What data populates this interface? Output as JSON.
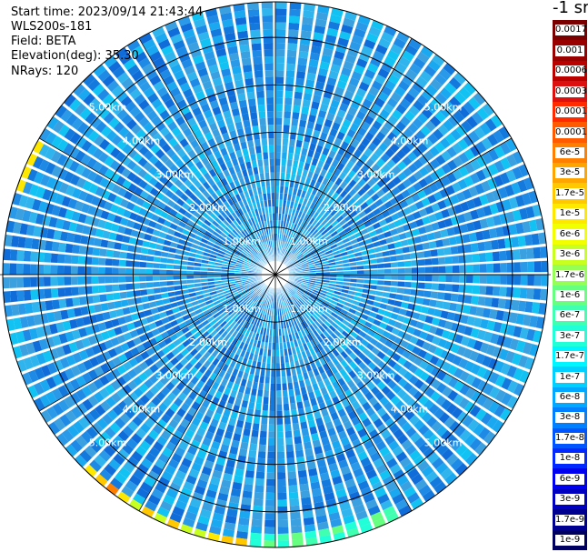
{
  "header": {
    "start_time": "Start time: 2023/09/14 21:43:44",
    "instrument": "WLS200s-181",
    "field": "Field: BETA",
    "elevation": "Elevation(deg): 35.30",
    "nrays": "NRays: 120"
  },
  "colorbar": {
    "unit_label": "-1 sr",
    "entries": [
      {
        "label": "0.0017",
        "color": "#7a0000"
      },
      {
        "label": "0.001",
        "color": "#990000"
      },
      {
        "label": "0.0006",
        "color": "#bb0000"
      },
      {
        "label": "0.0003",
        "color": "#dd1010"
      },
      {
        "label": "0.00017",
        "color": "#ff2a00"
      },
      {
        "label": "0.0001",
        "color": "#ff5a00"
      },
      {
        "label": "6e-5",
        "color": "#ff8000"
      },
      {
        "label": "3e-5",
        "color": "#ffa500"
      },
      {
        "label": "1.7e-5",
        "color": "#ffc800"
      },
      {
        "label": "1e-5",
        "color": "#ffe800"
      },
      {
        "label": "6e-6",
        "color": "#f2ff00"
      },
      {
        "label": "3e-6",
        "color": "#c8ff20"
      },
      {
        "label": "1.7e-6",
        "color": "#96ff55"
      },
      {
        "label": "1e-6",
        "color": "#66ff80"
      },
      {
        "label": "6e-7",
        "color": "#40ffb0"
      },
      {
        "label": "3e-7",
        "color": "#20ffd8"
      },
      {
        "label": "1.7e-7",
        "color": "#00f5ff"
      },
      {
        "label": "1e-7",
        "color": "#00d0ff"
      },
      {
        "label": "6e-8",
        "color": "#00a8ff"
      },
      {
        "label": "3e-8",
        "color": "#0080ff"
      },
      {
        "label": "1.7e-8",
        "color": "#0055ff"
      },
      {
        "label": "1e-8",
        "color": "#0028ff"
      },
      {
        "label": "6e-9",
        "color": "#0000f0"
      },
      {
        "label": "3e-9",
        "color": "#0000c0"
      },
      {
        "label": "1.7e-9",
        "color": "#000090"
      },
      {
        "label": "1e-9",
        "color": "#000060"
      }
    ]
  },
  "chart_data": {
    "type": "heatmap",
    "projection": "polar PPI",
    "field": "BETA",
    "rays": 120,
    "range_rings_km": [
      1.0,
      2.0,
      3.0,
      4.0,
      5.0
    ],
    "ring_labels": [
      "1.00km",
      "2.00km",
      "3.00km",
      "4.00km",
      "5.00km"
    ],
    "max_range_km": 5.75,
    "spoke_angles_deg": [
      0,
      30,
      60,
      90,
      120,
      150,
      180,
      210,
      240,
      270,
      300,
      330
    ],
    "dominant_value": "1e-7",
    "value_range": [
      "6e-8",
      "1.7e-7"
    ],
    "edge_values": [
      "3e-6",
      "1e-5",
      "6e-5"
    ]
  }
}
